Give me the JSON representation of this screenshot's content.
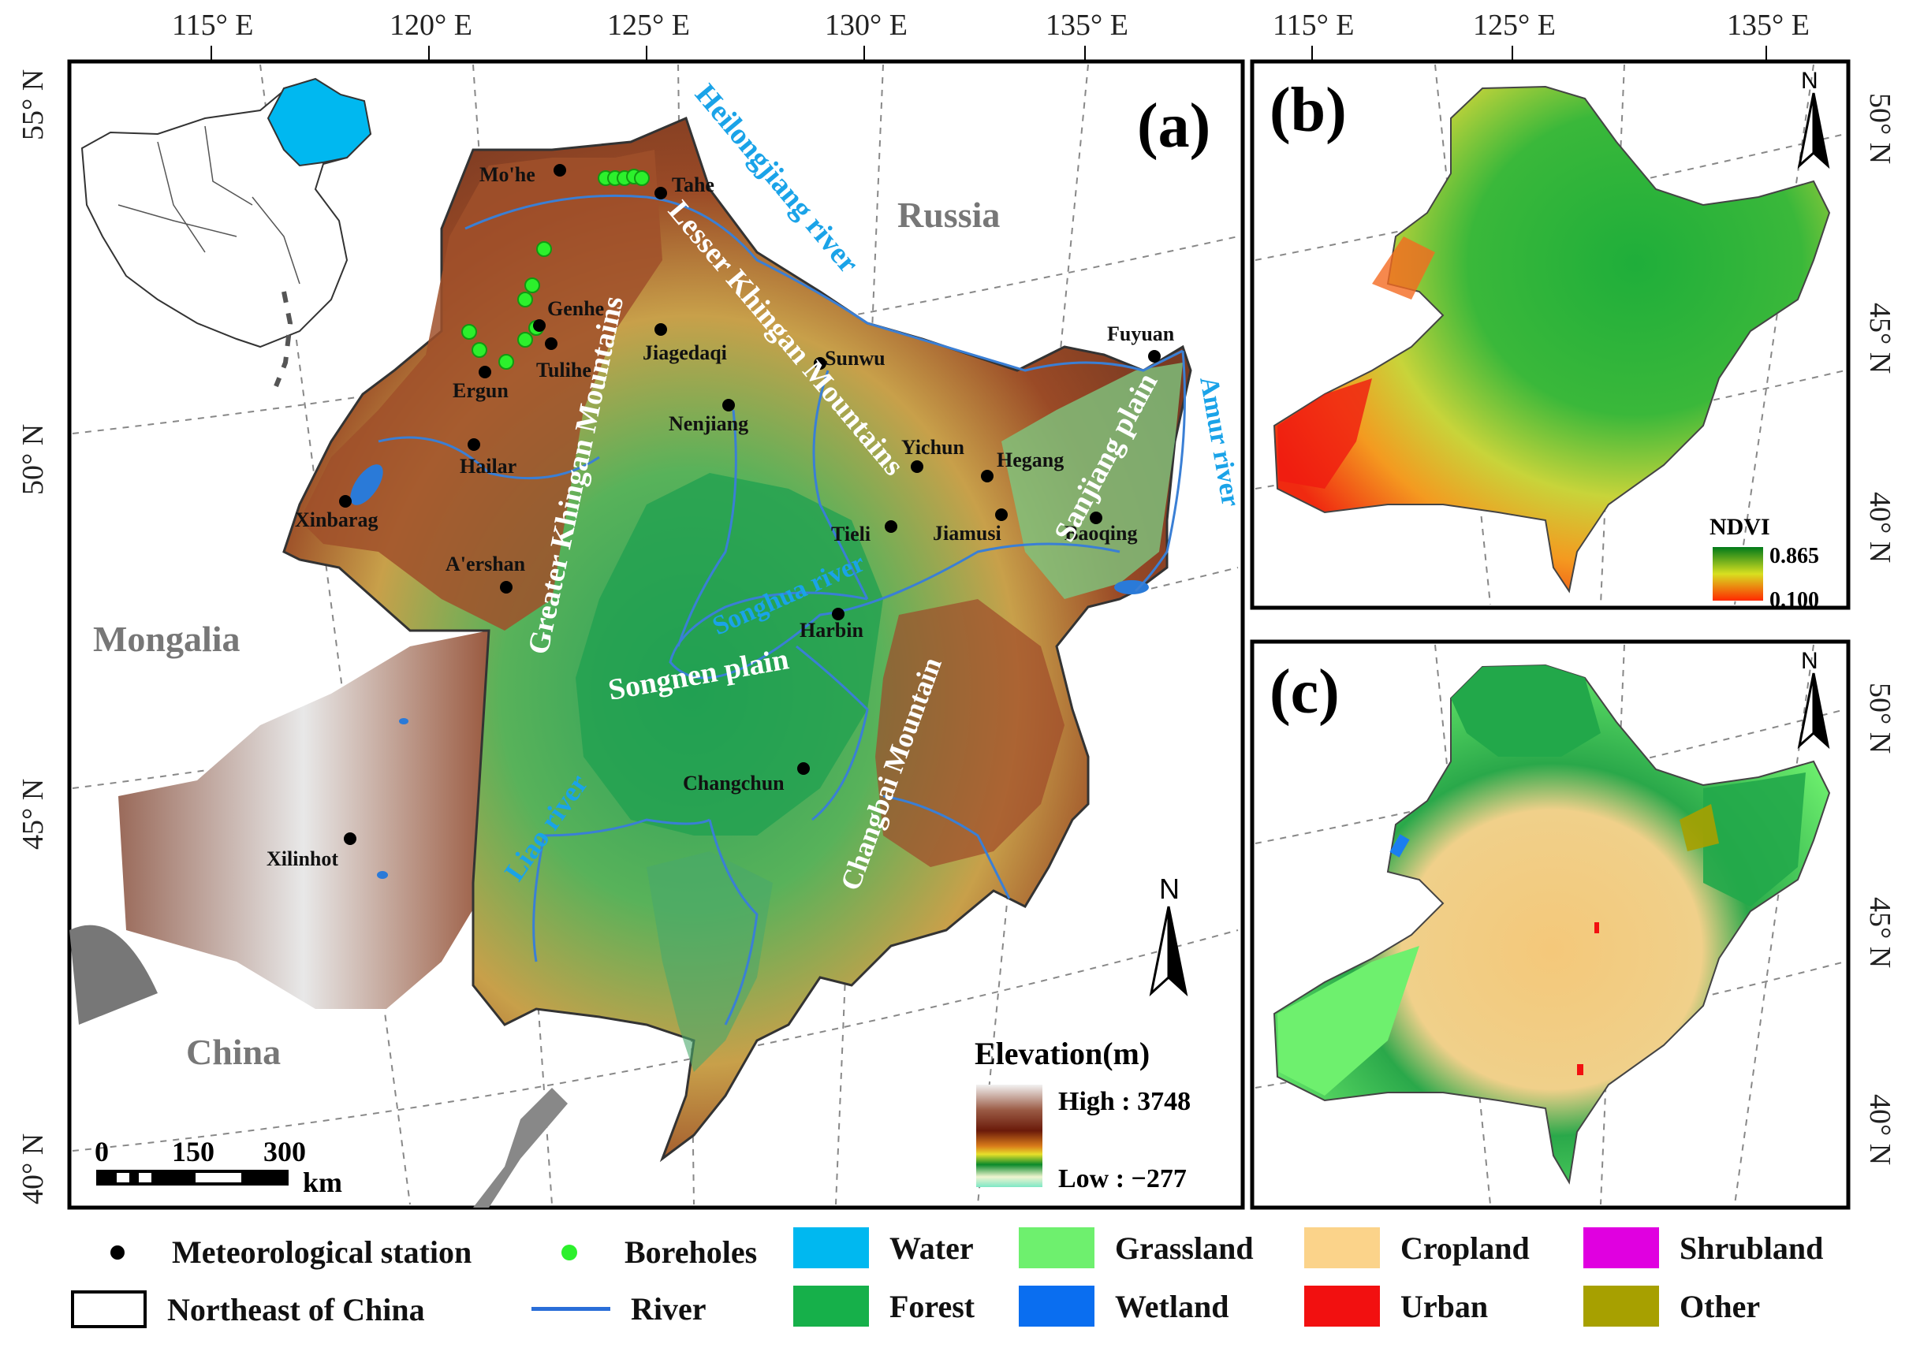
{
  "panels": {
    "a": {
      "label": "(a)",
      "top_ticks": [
        "115° E",
        "120° E",
        "125° E",
        "130° E",
        "135° E"
      ],
      "left_ticks": [
        "55° N",
        "50° N",
        "45° N",
        "40° N"
      ],
      "regions": {
        "russia": "Russia",
        "mongolia": "Mongalia",
        "china": "China"
      },
      "mountains": {
        "greater": "Greater Khingan Mountains",
        "lesser": "Lesser Khingan Mountains",
        "changbai": "Changbai Mountain"
      },
      "plains": {
        "songnen": "Songnen plain",
        "sanjiang": "Sanjiang plain"
      },
      "rivers": {
        "heilongjiang": "Heilongjiang river",
        "amur": "Amur river",
        "songhua": "Songhua river",
        "liao": "Liao river"
      },
      "stations": [
        {
          "name": "Mo'he"
        },
        {
          "name": "Tahe"
        },
        {
          "name": "Genhe"
        },
        {
          "name": "Tulihe"
        },
        {
          "name": "Jiagedaqi"
        },
        {
          "name": "Ergun"
        },
        {
          "name": "Sunwu"
        },
        {
          "name": "Nenjiang"
        },
        {
          "name": "Hailar"
        },
        {
          "name": "Xinbarag"
        },
        {
          "name": "A'ershan"
        },
        {
          "name": "Yichun"
        },
        {
          "name": "Hegang"
        },
        {
          "name": "Jiamusi"
        },
        {
          "name": "Baoqing"
        },
        {
          "name": "Tieli"
        },
        {
          "name": "Fuyuan"
        },
        {
          "name": "Harbin"
        },
        {
          "name": "Changchun"
        },
        {
          "name": "Xilinhot"
        }
      ],
      "elevation_legend": {
        "title": "Elevation(m)",
        "high": "High : 3748",
        "low": "Low : −277"
      },
      "scalebar": {
        "labels": [
          "0",
          "150",
          "300"
        ],
        "unit": "km"
      },
      "north": "N"
    },
    "b": {
      "label": "(b)",
      "top_ticks": [
        "115° E",
        "125° E",
        "135° E"
      ],
      "right_ticks": [
        "50° N",
        "45° N",
        "40° N"
      ],
      "north": "N",
      "ndvi_legend": {
        "title": "NDVI",
        "max": "0.865",
        "min": "0.100"
      }
    },
    "c": {
      "label": "(c)",
      "right_ticks": [
        "50° N",
        "45° N",
        "40° N"
      ],
      "north": "N"
    }
  },
  "legend": {
    "items": [
      {
        "label": "Meteorological station",
        "symbol": "black-dot"
      },
      {
        "label": "Boreholes",
        "symbol": "green-dot"
      },
      {
        "label": "Water",
        "color": "#00b8f0"
      },
      {
        "label": "Grassland",
        "color": "#6ef06e"
      },
      {
        "label": "Cropland",
        "color": "#fbd38a"
      },
      {
        "label": "Shrubland",
        "color": "#e000e0"
      },
      {
        "label": "Northeast of China",
        "symbol": "outline-box"
      },
      {
        "label": "River",
        "symbol": "blue-line"
      },
      {
        "label": "Forest",
        "color": "#16b04a"
      },
      {
        "label": "Wetland",
        "color": "#0a6ef0"
      },
      {
        "label": "Urban",
        "color": "#f21010"
      },
      {
        "label": "Other",
        "color": "#a7a000"
      }
    ]
  },
  "colors": {
    "elev_high": "#f5f5f5",
    "elev_mid": "#7a2a12",
    "elev_low_green": "#1a8c3a",
    "ndvi_high": "#009a2a",
    "ndvi_low": "#ff2a00",
    "river": "#3a7fd5"
  }
}
